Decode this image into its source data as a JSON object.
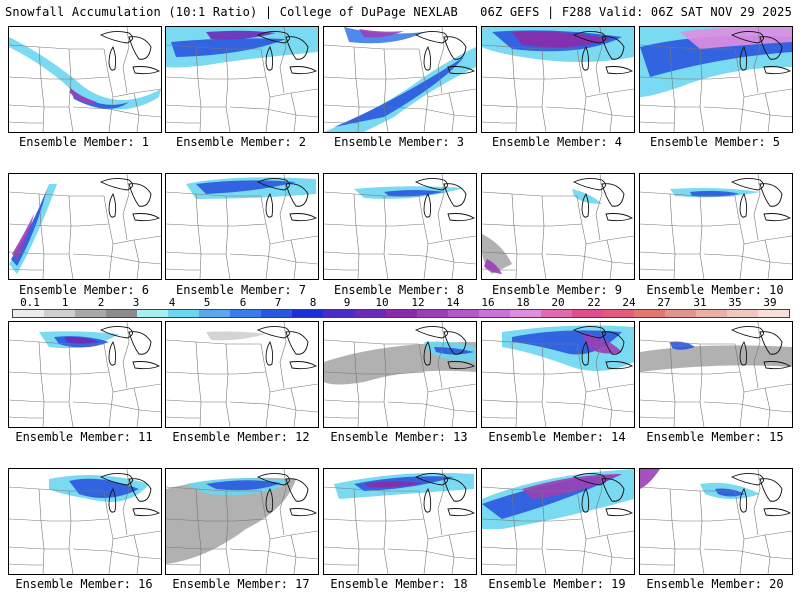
{
  "header": {
    "left_title": "Snowfall Accumulation (10:1 Ratio) | College of DuPage NEXLAB",
    "right_title": "06Z GEFS | F288 Valid: 06Z SAT NOV 29 2025"
  },
  "legend": {
    "ticks": [
      "0.1",
      "1",
      "2",
      "3",
      "4",
      "5",
      "6",
      "7",
      "8",
      "9",
      "10",
      "12",
      "14",
      "16",
      "18",
      "20",
      "22",
      "24",
      "27",
      "31",
      "35",
      "39"
    ],
    "colors": [
      "#ececec",
      "#cfcfcf",
      "#a9a9a9",
      "#8c8c8c",
      "#a8f0f0",
      "#6ad6f0",
      "#59a8ee",
      "#3b7ceb",
      "#2a57e0",
      "#1a2fd6",
      "#4a2bc8",
      "#6b2ab8",
      "#8a2aa8",
      "#9b3fb8",
      "#b35ac8",
      "#c874d6",
      "#de8ee0",
      "#e06ab0",
      "#e04c8c",
      "#e45a7a",
      "#e07870",
      "#e09490",
      "#eab0a8",
      "#f0c8c0",
      "#f6e0d8"
    ]
  },
  "members": [
    {
      "label": "Ensemble Member: 1"
    },
    {
      "label": "Ensemble Member: 2"
    },
    {
      "label": "Ensemble Member: 3"
    },
    {
      "label": "Ensemble Member: 4"
    },
    {
      "label": "Ensemble Member: 5"
    },
    {
      "label": "Ensemble Member: 6"
    },
    {
      "label": "Ensemble Member: 7"
    },
    {
      "label": "Ensemble Member: 8"
    },
    {
      "label": "Ensemble Member: 9"
    },
    {
      "label": "Ensemble Member: 10"
    },
    {
      "label": "Ensemble Member: 11"
    },
    {
      "label": "Ensemble Member: 12"
    },
    {
      "label": "Ensemble Member: 13"
    },
    {
      "label": "Ensemble Member: 14"
    },
    {
      "label": "Ensemble Member: 15"
    },
    {
      "label": "Ensemble Member: 16"
    },
    {
      "label": "Ensemble Member: 17"
    },
    {
      "label": "Ensemble Member: 18"
    },
    {
      "label": "Ensemble Member: 19"
    },
    {
      "label": "Ensemble Member: 20"
    }
  ]
}
